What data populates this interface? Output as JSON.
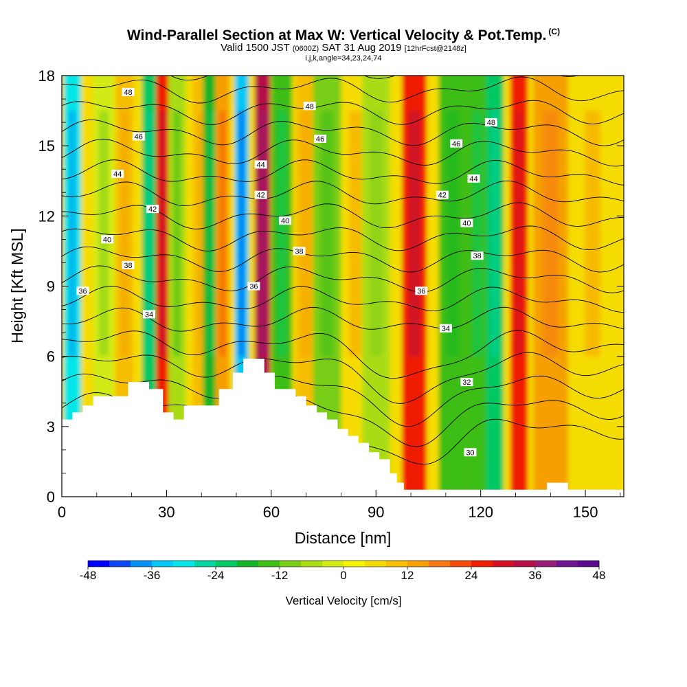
{
  "title": {
    "main": "Wind-Parallel Section at Max W: Vertical Velocity & Pot.Temp.",
    "units": "(C)",
    "valid_a": "Valid 1500 JST",
    "valid_b": "(0600Z)",
    "valid_c": "SAT 31 Aug 2019",
    "valid_d": "[12hrFcst@2148z]",
    "indices": "i,j,k,angle=34,23,24,74"
  },
  "colors": {
    "terrain": "#ffffff",
    "contour": "#000000",
    "levels": [
      "#0000ff",
      "#0a46f2",
      "#0091f5",
      "#00c8f5",
      "#00e6e6",
      "#00d2a0",
      "#00c864",
      "#14b428",
      "#3cbe14",
      "#78cd14",
      "#aadc14",
      "#d2eb14",
      "#f5f500",
      "#f5dc00",
      "#f5be00",
      "#f5a000",
      "#f57814",
      "#f54b0a",
      "#f01e00",
      "#d20f23",
      "#b40f46",
      "#961e78",
      "#6e1491",
      "#5a0a8c"
    ]
  },
  "chart_data": {
    "type": "heatmap",
    "xlabel": "Distance [nm]",
    "ylabel": "Height [Kft MSL]",
    "xlim": [
      0,
      161
    ],
    "ylim": [
      0,
      18
    ],
    "x_ticks": [
      0,
      30,
      60,
      90,
      120,
      150
    ],
    "y_ticks": [
      0,
      3,
      6,
      9,
      12,
      15,
      18
    ],
    "colorbar": {
      "label": "Vertical Velocity [cm/s]",
      "min": -48,
      "max": 48,
      "step": 4,
      "tick_labels": [
        "-48",
        "-36",
        "-24",
        "-12",
        "0",
        "12",
        "24",
        "36",
        "48"
      ]
    },
    "vertical_velocity_bands": [
      {
        "x": 3,
        "w": 2.5,
        "value": -32
      },
      {
        "x": 12,
        "w": 3,
        "value": -4
      },
      {
        "x": 18,
        "w": 2.5,
        "value": 8
      },
      {
        "x": 25,
        "w": 2,
        "value": -22
      },
      {
        "x": 29,
        "w": 2,
        "value": 26
      },
      {
        "x": 33,
        "w": 2.5,
        "value": -8
      },
      {
        "x": 40,
        "w": 2.5,
        "value": 8
      },
      {
        "x": 43,
        "w": 2.5,
        "value": -18
      },
      {
        "x": 46,
        "w": 2,
        "value": 14
      },
      {
        "x": 51.5,
        "w": 2,
        "value": -36
      },
      {
        "x": 57.5,
        "w": 2.2,
        "value": 32
      },
      {
        "x": 63,
        "w": 3,
        "value": -16
      },
      {
        "x": 70,
        "w": 3,
        "value": 8
      },
      {
        "x": 76,
        "w": 4,
        "value": -10
      },
      {
        "x": 84,
        "w": 4,
        "value": 6
      },
      {
        "x": 90,
        "w": 4,
        "value": -6
      },
      {
        "x": 101,
        "w": 3.5,
        "value": 26
      },
      {
        "x": 112,
        "w": 4,
        "value": -14
      },
      {
        "x": 119,
        "w": 3,
        "value": -16
      },
      {
        "x": 124,
        "w": 2.5,
        "value": -22
      },
      {
        "x": 131,
        "w": 2.5,
        "value": 24
      },
      {
        "x": 140,
        "w": 5,
        "value": 12
      },
      {
        "x": 152,
        "w": 5,
        "value": 6
      }
    ],
    "pot_temp_contours": {
      "min": 30,
      "max": 48,
      "step": 1,
      "labels": [
        {
          "x": 19,
          "y": 17.3,
          "text": "48"
        },
        {
          "x": 71,
          "y": 16.7,
          "text": "48"
        },
        {
          "x": 123,
          "y": 16.0,
          "text": "48"
        },
        {
          "x": 22,
          "y": 15.4,
          "text": "46"
        },
        {
          "x": 74,
          "y": 15.3,
          "text": "46"
        },
        {
          "x": 113,
          "y": 15.1,
          "text": "46"
        },
        {
          "x": 16,
          "y": 13.8,
          "text": "44"
        },
        {
          "x": 57,
          "y": 14.2,
          "text": "44"
        },
        {
          "x": 118,
          "y": 13.6,
          "text": "44"
        },
        {
          "x": 26,
          "y": 12.3,
          "text": "42"
        },
        {
          "x": 57,
          "y": 12.9,
          "text": "42"
        },
        {
          "x": 109,
          "y": 12.9,
          "text": "42"
        },
        {
          "x": 13,
          "y": 11.0,
          "text": "40"
        },
        {
          "x": 64,
          "y": 11.8,
          "text": "40"
        },
        {
          "x": 116,
          "y": 11.7,
          "text": "40"
        },
        {
          "x": 19,
          "y": 9.9,
          "text": "38"
        },
        {
          "x": 68,
          "y": 10.5,
          "text": "38"
        },
        {
          "x": 119,
          "y": 10.3,
          "text": "38"
        },
        {
          "x": 6,
          "y": 8.8,
          "text": "36"
        },
        {
          "x": 55,
          "y": 9.0,
          "text": "36"
        },
        {
          "x": 103,
          "y": 8.8,
          "text": "36"
        },
        {
          "x": 25,
          "y": 7.8,
          "text": "34"
        },
        {
          "x": 110,
          "y": 7.2,
          "text": "34"
        },
        {
          "x": 116,
          "y": 4.9,
          "text": "32"
        },
        {
          "x": 117,
          "y": 1.9,
          "text": "30"
        }
      ]
    },
    "terrain_profile_kft": [
      [
        0,
        3.3
      ],
      [
        3,
        3.6
      ],
      [
        6,
        3.9
      ],
      [
        9,
        4.3
      ],
      [
        19,
        4.9
      ],
      [
        25,
        4.6
      ],
      [
        29,
        3.6
      ],
      [
        32,
        3.3
      ],
      [
        35,
        3.9
      ],
      [
        45,
        4.6
      ],
      [
        49,
        5.3
      ],
      [
        52,
        5.9
      ],
      [
        58,
        5.3
      ],
      [
        61,
        4.6
      ],
      [
        67,
        4.3
      ],
      [
        70,
        3.9
      ],
      [
        73,
        3.6
      ],
      [
        76,
        3.3
      ],
      [
        79,
        2.9
      ],
      [
        82,
        2.6
      ],
      [
        85,
        2.3
      ],
      [
        88,
        1.9
      ],
      [
        91,
        1.6
      ],
      [
        94,
        1.0
      ],
      [
        96,
        0.6
      ],
      [
        98,
        0.3
      ],
      [
        136,
        0.3
      ],
      [
        139,
        0.6
      ],
      [
        145,
        0.3
      ],
      [
        161,
        0.3
      ]
    ]
  }
}
